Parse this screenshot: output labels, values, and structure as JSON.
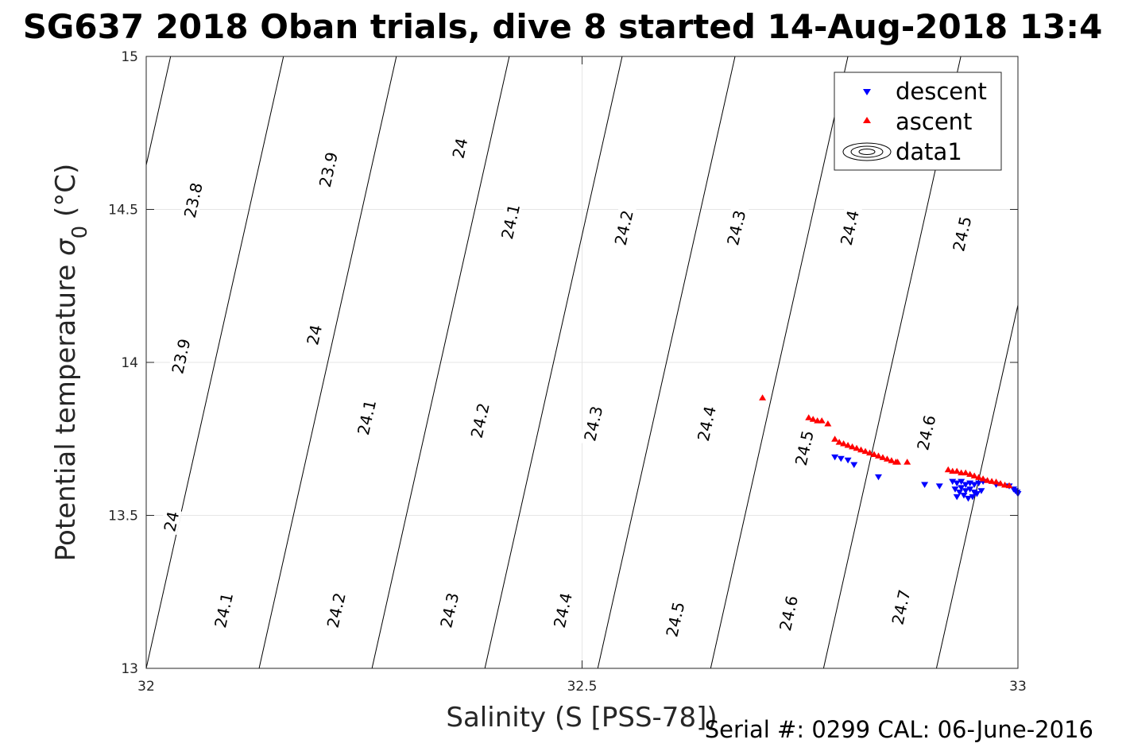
{
  "chart_data": {
    "type": "scatter",
    "title": "SG637 2018 Oban trials, dive 8 started 14-Aug-2018 13:4",
    "xlabel": "Salinity (S [PSS-78])",
    "ylabel_main": "Potential temperature ",
    "ylabel_sym": "σ",
    "ylabel_sub": "0",
    "ylabel_unit": " (°C)",
    "xlim": [
      32,
      33
    ],
    "ylim": [
      13,
      15
    ],
    "xticks": [
      "32",
      "32.5",
      "33"
    ],
    "yticks": [
      "13",
      "13.5",
      "14",
      "14.5",
      "15"
    ],
    "grid": true,
    "legend": {
      "position": "top-right",
      "entries": [
        "descent",
        "ascent",
        "data1"
      ]
    },
    "density_contours": {
      "line_color": "#000000",
      "labels": [
        {
          "text": "23.8",
          "s": 32.054,
          "t": 14.53
        },
        {
          "text": "23.9",
          "s": 32.209,
          "t": 14.63
        },
        {
          "text": "24",
          "s": 32.36,
          "t": 14.7
        },
        {
          "text": "24.1",
          "s": 32.418,
          "t": 14.46
        },
        {
          "text": "24.2",
          "s": 32.548,
          "t": 14.44
        },
        {
          "text": "24.3",
          "s": 32.677,
          "t": 14.44
        },
        {
          "text": "24.4",
          "s": 32.807,
          "t": 14.44
        },
        {
          "text": "24.5",
          "s": 32.936,
          "t": 14.42
        },
        {
          "text": "23.9",
          "s": 32.04,
          "t": 14.02
        },
        {
          "text": "24",
          "s": 32.193,
          "t": 14.09
        },
        {
          "text": "24.1",
          "s": 32.253,
          "t": 13.82
        },
        {
          "text": "24.2",
          "s": 32.383,
          "t": 13.81
        },
        {
          "text": "24.3",
          "s": 32.513,
          "t": 13.8
        },
        {
          "text": "24.4",
          "s": 32.643,
          "t": 13.8
        },
        {
          "text": "24.5",
          "s": 32.755,
          "t": 13.72
        },
        {
          "text": "24.6",
          "s": 32.895,
          "t": 13.77
        },
        {
          "text": "24",
          "s": 32.029,
          "t": 13.48
        },
        {
          "text": "24.1",
          "s": 32.089,
          "t": 13.19
        },
        {
          "text": "24.2",
          "s": 32.218,
          "t": 13.19
        },
        {
          "text": "24.3",
          "s": 32.348,
          "t": 13.19
        },
        {
          "text": "24.4",
          "s": 32.478,
          "t": 13.19
        },
        {
          "text": "24.5",
          "s": 32.607,
          "t": 13.16
        },
        {
          "text": "24.6",
          "s": 32.737,
          "t": 13.18
        },
        {
          "text": "24.7",
          "s": 32.866,
          "t": 13.2
        }
      ]
    },
    "series": [
      {
        "name": "descent",
        "marker": "triangle-down",
        "color": "#0000ff",
        "points": [
          [
            32.79,
            13.69
          ],
          [
            32.797,
            13.685
          ],
          [
            32.805,
            13.68
          ],
          [
            32.812,
            13.665
          ],
          [
            32.84,
            13.625
          ],
          [
            32.893,
            13.6
          ],
          [
            32.91,
            13.595
          ],
          [
            32.925,
            13.61
          ],
          [
            32.93,
            13.605
          ],
          [
            32.935,
            13.61
          ],
          [
            32.94,
            13.6
          ],
          [
            32.945,
            13.605
          ],
          [
            32.95,
            13.6
          ],
          [
            32.955,
            13.605
          ],
          [
            32.96,
            13.61
          ],
          [
            32.928,
            13.585
          ],
          [
            32.933,
            13.575
          ],
          [
            32.938,
            13.565
          ],
          [
            32.943,
            13.555
          ],
          [
            32.948,
            13.56
          ],
          [
            32.953,
            13.57
          ],
          [
            32.958,
            13.58
          ],
          [
            32.935,
            13.59
          ],
          [
            32.945,
            13.585
          ],
          [
            32.95,
            13.575
          ],
          [
            32.94,
            13.58
          ],
          [
            32.93,
            13.56
          ],
          [
            32.975,
            13.6
          ],
          [
            32.99,
            13.595
          ],
          [
            32.995,
            13.585
          ],
          [
            32.997,
            13.58
          ],
          [
            32.999,
            13.575
          ],
          [
            33.0,
            13.57
          ]
        ]
      },
      {
        "name": "ascent",
        "marker": "triangle-up",
        "color": "#ff0000",
        "points": [
          [
            32.707,
            13.885
          ],
          [
            32.76,
            13.82
          ],
          [
            32.765,
            13.815
          ],
          [
            32.77,
            13.81
          ],
          [
            32.775,
            13.81
          ],
          [
            32.782,
            13.8
          ],
          [
            32.79,
            13.75
          ],
          [
            32.795,
            13.74
          ],
          [
            32.8,
            13.735
          ],
          [
            32.805,
            13.73
          ],
          [
            32.81,
            13.725
          ],
          [
            32.815,
            13.72
          ],
          [
            32.82,
            13.715
          ],
          [
            32.825,
            13.71
          ],
          [
            32.83,
            13.705
          ],
          [
            32.835,
            13.7
          ],
          [
            32.84,
            13.695
          ],
          [
            32.845,
            13.69
          ],
          [
            32.85,
            13.685
          ],
          [
            32.855,
            13.68
          ],
          [
            32.86,
            13.675
          ],
          [
            32.862,
            13.675
          ],
          [
            32.873,
            13.675
          ],
          [
            32.92,
            13.65
          ],
          [
            32.925,
            13.645
          ],
          [
            32.93,
            13.645
          ],
          [
            32.935,
            13.64
          ],
          [
            32.94,
            13.64
          ],
          [
            32.945,
            13.635
          ],
          [
            32.95,
            13.63
          ],
          [
            32.955,
            13.625
          ],
          [
            32.96,
            13.62
          ],
          [
            32.965,
            13.615
          ],
          [
            32.97,
            13.612
          ],
          [
            32.975,
            13.61
          ],
          [
            32.98,
            13.605
          ],
          [
            32.985,
            13.6
          ],
          [
            32.99,
            13.598
          ]
        ]
      }
    ]
  },
  "footer": {
    "serial": "Serial #: 0299 CAL: 06-June-2016"
  }
}
